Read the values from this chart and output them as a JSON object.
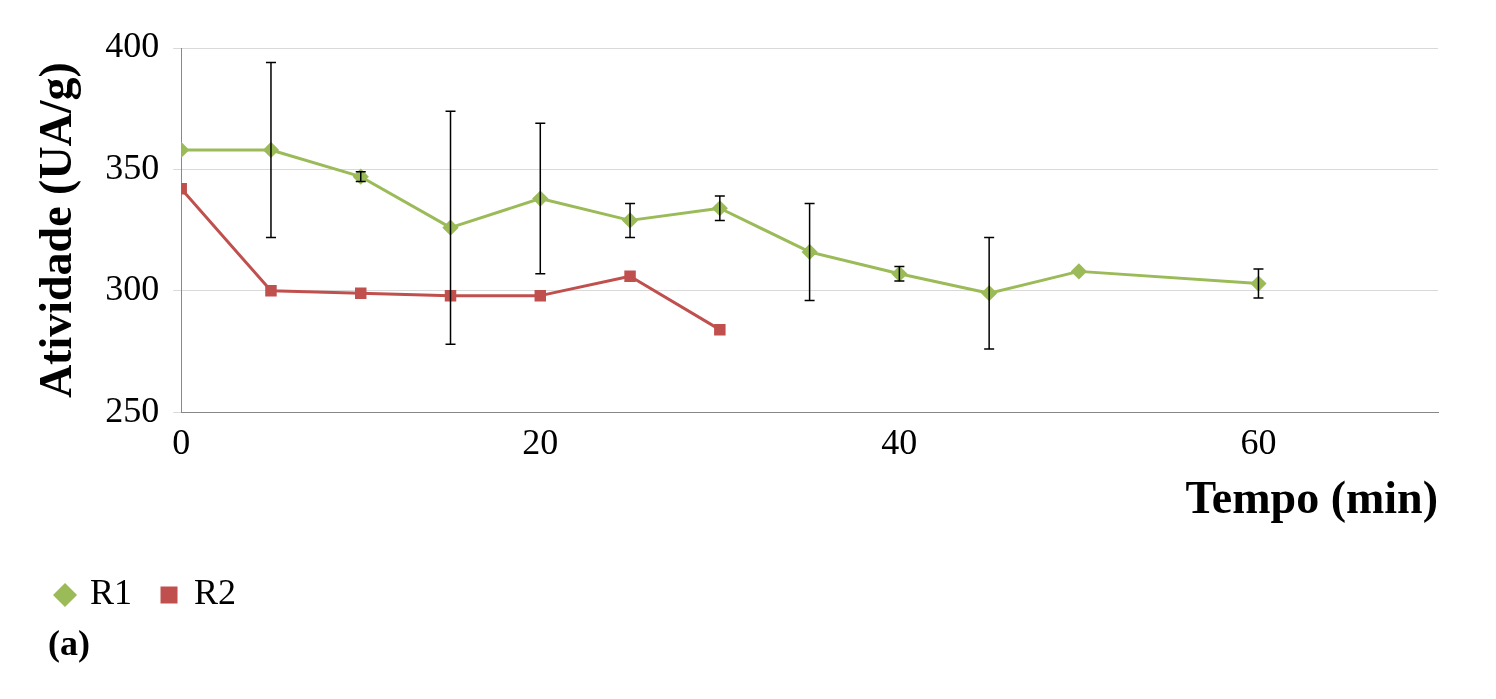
{
  "chart_data": {
    "type": "line",
    "xlabel": "Tempo (min)",
    "ylabel": "Atividade (UA/g)",
    "annotations": [
      "(a)"
    ],
    "xlim": [
      0,
      70
    ],
    "xticks": [
      0,
      20,
      40,
      60
    ],
    "ylim": [
      250,
      400
    ],
    "yticks": [
      250,
      300,
      350,
      400
    ],
    "grid": "y",
    "legend": "bottom left",
    "series": [
      {
        "name": "R1",
        "color": "#9bbb59",
        "marker": "diamond",
        "x": [
          0,
          5,
          10,
          15,
          20,
          25,
          30,
          35,
          40,
          45,
          50,
          60
        ],
        "values": [
          358,
          358,
          347,
          326,
          338,
          329,
          334,
          316,
          307,
          299,
          308,
          303
        ],
        "errors": [
          null,
          36,
          2,
          48,
          31,
          7,
          5,
          20,
          3,
          23,
          null,
          6
        ]
      },
      {
        "name": "R2",
        "color": "#c0504d",
        "marker": "square",
        "x": [
          0,
          5,
          10,
          15,
          20,
          25,
          30
        ],
        "values": [
          342,
          300,
          299,
          298,
          298,
          306,
          284
        ]
      }
    ]
  }
}
